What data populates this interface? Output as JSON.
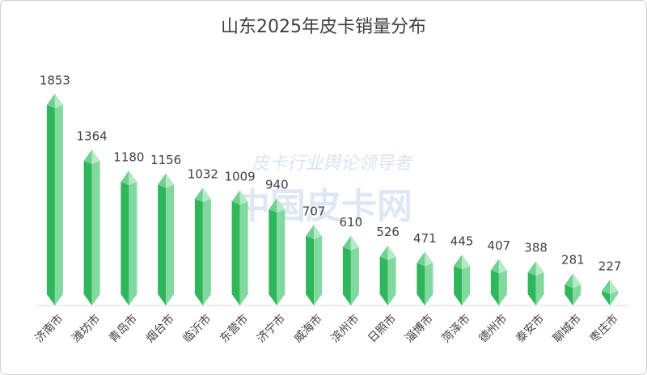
{
  "chart_data": {
    "type": "bar",
    "title": "山东2025年皮卡销量分布",
    "watermark": [
      "皮卡行业舆论领导者",
      "中国皮卡网"
    ],
    "categories": [
      "济南市",
      "潍坊市",
      "青岛市",
      "烟台市",
      "临沂市",
      "东营市",
      "济宁市",
      "威海市",
      "滨州市",
      "日照市",
      "淄博市",
      "菏泽市",
      "德州市",
      "泰安市",
      "聊城市",
      "枣庄市"
    ],
    "values": [
      1853,
      1364,
      1180,
      1156,
      1032,
      1009,
      940,
      707,
      610,
      526,
      471,
      445,
      407,
      388,
      281,
      227
    ],
    "color": "#3cc368",
    "ylim": [
      0,
      2000
    ]
  }
}
